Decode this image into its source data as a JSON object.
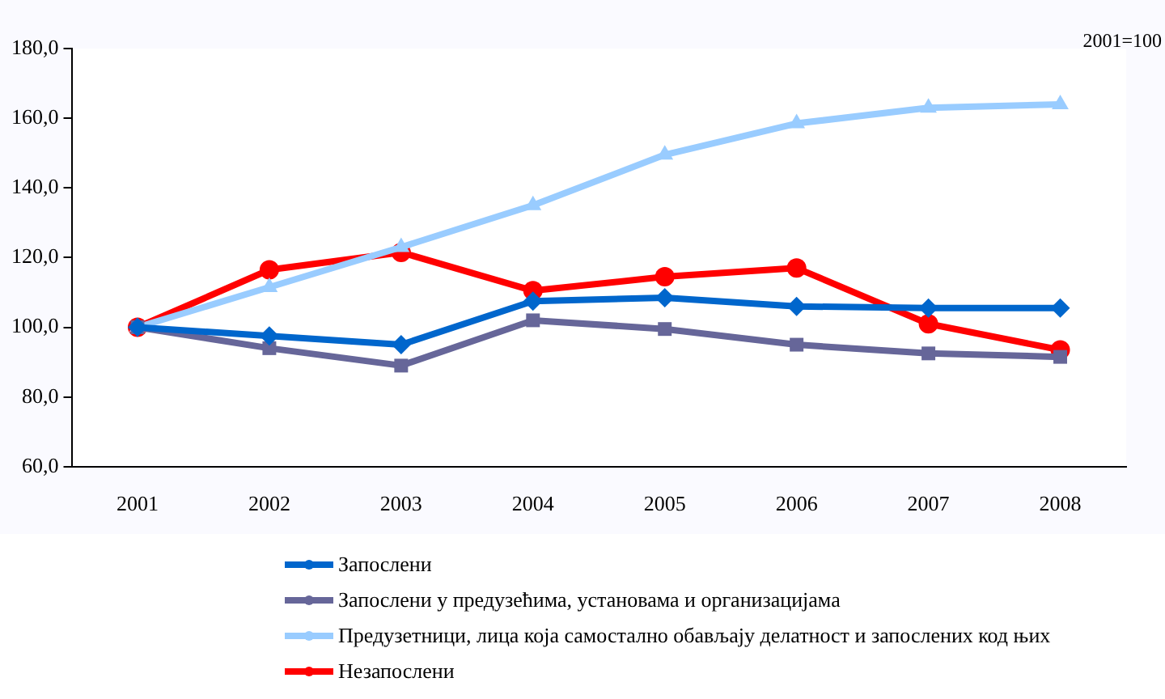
{
  "chart_data": {
    "type": "line",
    "categories": [
      "2001",
      "2002",
      "2003",
      "2004",
      "2005",
      "2006",
      "2007",
      "2008"
    ],
    "series": [
      {
        "name": "Запослени",
        "color": "#0066cc",
        "marker": "diamond",
        "values": [
          100,
          97.5,
          95,
          107.5,
          108.5,
          106,
          105.5,
          105.5
        ]
      },
      {
        "name": "Запослени у предузећима, установама и организацијама",
        "color": "#666699",
        "marker": "square",
        "values": [
          100,
          94,
          89,
          102,
          99.5,
          95,
          92.5,
          91.5
        ]
      },
      {
        "name": "Предузетници, лица која самостално обављају делатност и запослених код њих",
        "color": "#99ccff",
        "marker": "triangle",
        "values": [
          100,
          111.5,
          123,
          135,
          149.5,
          158.5,
          163,
          164
        ]
      },
      {
        "name": "Незапослени",
        "color": "#ff0000",
        "marker": "circle",
        "values": [
          100,
          116.5,
          121.5,
          110.5,
          114.5,
          117,
          101,
          93.5
        ]
      }
    ],
    "ylim": [
      60,
      180
    ],
    "yticks": [
      {
        "value": 60,
        "label": "60,0"
      },
      {
        "value": 80,
        "label": "80,0"
      },
      {
        "value": 100,
        "label": "100,0"
      },
      {
        "value": 120,
        "label": "120,0"
      },
      {
        "value": 140,
        "label": "140,0"
      },
      {
        "value": 160,
        "label": "160,0"
      },
      {
        "value": 180,
        "label": "180,0"
      }
    ],
    "annotations": [
      "2001=100"
    ],
    "grid": false,
    "legend": "bottom",
    "line_style": "solid"
  }
}
